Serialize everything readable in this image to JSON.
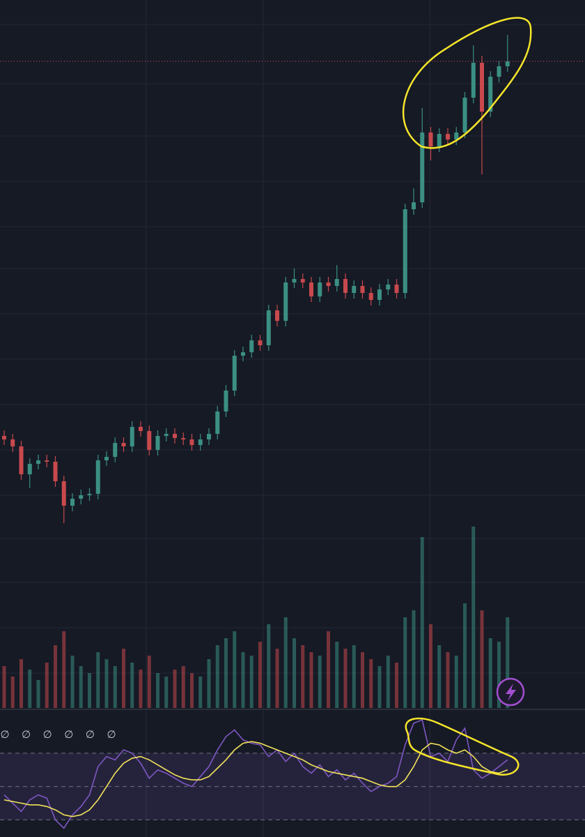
{
  "chart_data": {
    "type": "candlestick",
    "open": [
      145,
      140,
      130,
      90,
      105,
      110,
      108,
      80,
      45,
      55,
      60,
      62,
      110,
      115,
      135,
      130,
      158,
      152,
      125,
      145,
      148,
      142,
      140,
      132,
      140,
      148,
      180,
      210,
      260,
      265,
      282,
      275,
      325,
      310,
      365,
      370,
      365,
      345,
      365,
      360,
      370,
      350,
      360,
      350,
      340,
      355,
      362,
      350,
      470,
      480,
      580,
      560,
      578,
      570,
      580,
      630,
      680,
      610,
      660,
      675
    ],
    "high": [
      153,
      148,
      138,
      113,
      118,
      118,
      116,
      88,
      63,
      68,
      70,
      118,
      123,
      143,
      143,
      166,
      166,
      160,
      153,
      156,
      156,
      150,
      148,
      148,
      156,
      188,
      218,
      268,
      273,
      290,
      290,
      333,
      333,
      373,
      385,
      378,
      373,
      373,
      373,
      390,
      378,
      368,
      368,
      358,
      363,
      370,
      370,
      478,
      500,
      615,
      588,
      586,
      586,
      588,
      638,
      705,
      690,
      668,
      683,
      720
    ],
    "low": [
      132,
      122,
      82,
      70,
      97,
      100,
      72,
      20,
      37,
      47,
      52,
      54,
      102,
      107,
      122,
      122,
      144,
      117,
      117,
      137,
      134,
      132,
      124,
      124,
      132,
      140,
      172,
      202,
      252,
      257,
      267,
      267,
      302,
      302,
      357,
      357,
      337,
      337,
      352,
      352,
      342,
      342,
      342,
      332,
      332,
      347,
      342,
      342,
      462,
      472,
      540,
      552,
      562,
      562,
      572,
      622,
      520,
      602,
      652,
      667
    ],
    "close": [
      140,
      130,
      90,
      105,
      110,
      108,
      80,
      45,
      55,
      60,
      62,
      110,
      115,
      135,
      130,
      158,
      152,
      125,
      145,
      148,
      142,
      140,
      132,
      140,
      148,
      180,
      210,
      260,
      265,
      282,
      275,
      325,
      310,
      365,
      370,
      365,
      345,
      365,
      360,
      370,
      350,
      360,
      350,
      340,
      355,
      362,
      350,
      470,
      480,
      580,
      560,
      578,
      570,
      580,
      630,
      680,
      610,
      660,
      675,
      682
    ],
    "ylim": [
      0,
      770
    ],
    "up_color": "#3b8f83",
    "down_color": "#c8494d",
    "volume": {
      "values": [
        60,
        45,
        70,
        55,
        40,
        65,
        90,
        110,
        75,
        60,
        50,
        80,
        70,
        60,
        85,
        65,
        55,
        75,
        50,
        45,
        55,
        60,
        50,
        45,
        70,
        90,
        100,
        110,
        80,
        75,
        95,
        120,
        85,
        130,
        100,
        90,
        80,
        75,
        110,
        95,
        85,
        90,
        80,
        70,
        60,
        75,
        65,
        130,
        140,
        245,
        120,
        90,
        80,
        75,
        150,
        260,
        140,
        100,
        95,
        130
      ],
      "ylim": [
        0,
        260
      ]
    },
    "rsi": {
      "values": [
        45,
        40,
        35,
        42,
        45,
        43,
        30,
        25,
        33,
        38,
        45,
        62,
        68,
        66,
        72,
        70,
        64,
        55,
        60,
        58,
        55,
        52,
        50,
        56,
        62,
        72,
        80,
        84,
        78,
        76,
        75,
        68,
        72,
        65,
        70,
        62,
        58,
        63,
        56,
        60,
        54,
        58,
        52,
        47,
        50,
        52,
        56,
        75,
        88,
        90,
        68,
        70,
        65,
        78,
        85,
        60,
        55,
        58,
        62,
        66
      ],
      "ma": [
        42,
        41,
        40,
        39,
        39,
        38,
        36,
        33,
        32,
        33,
        36,
        42,
        50,
        58,
        64,
        67,
        68,
        66,
        63,
        60,
        57,
        55,
        54,
        54,
        56,
        61,
        66,
        72,
        76,
        77,
        76,
        74,
        72,
        70,
        68,
        66,
        63,
        61,
        59,
        58,
        57,
        56,
        55,
        53,
        51,
        50,
        50,
        54,
        62,
        72,
        76,
        75,
        72,
        70,
        72,
        68,
        62,
        59,
        58,
        60
      ],
      "ylim": [
        19.7,
        95.5
      ],
      "levels": [
        70,
        50,
        30
      ],
      "color": "#7e57c2",
      "ma_color": "#f2e35a"
    },
    "indicator_status": [
      "∅",
      "∅",
      "∅",
      "∅",
      "∅",
      "∅"
    ]
  }
}
